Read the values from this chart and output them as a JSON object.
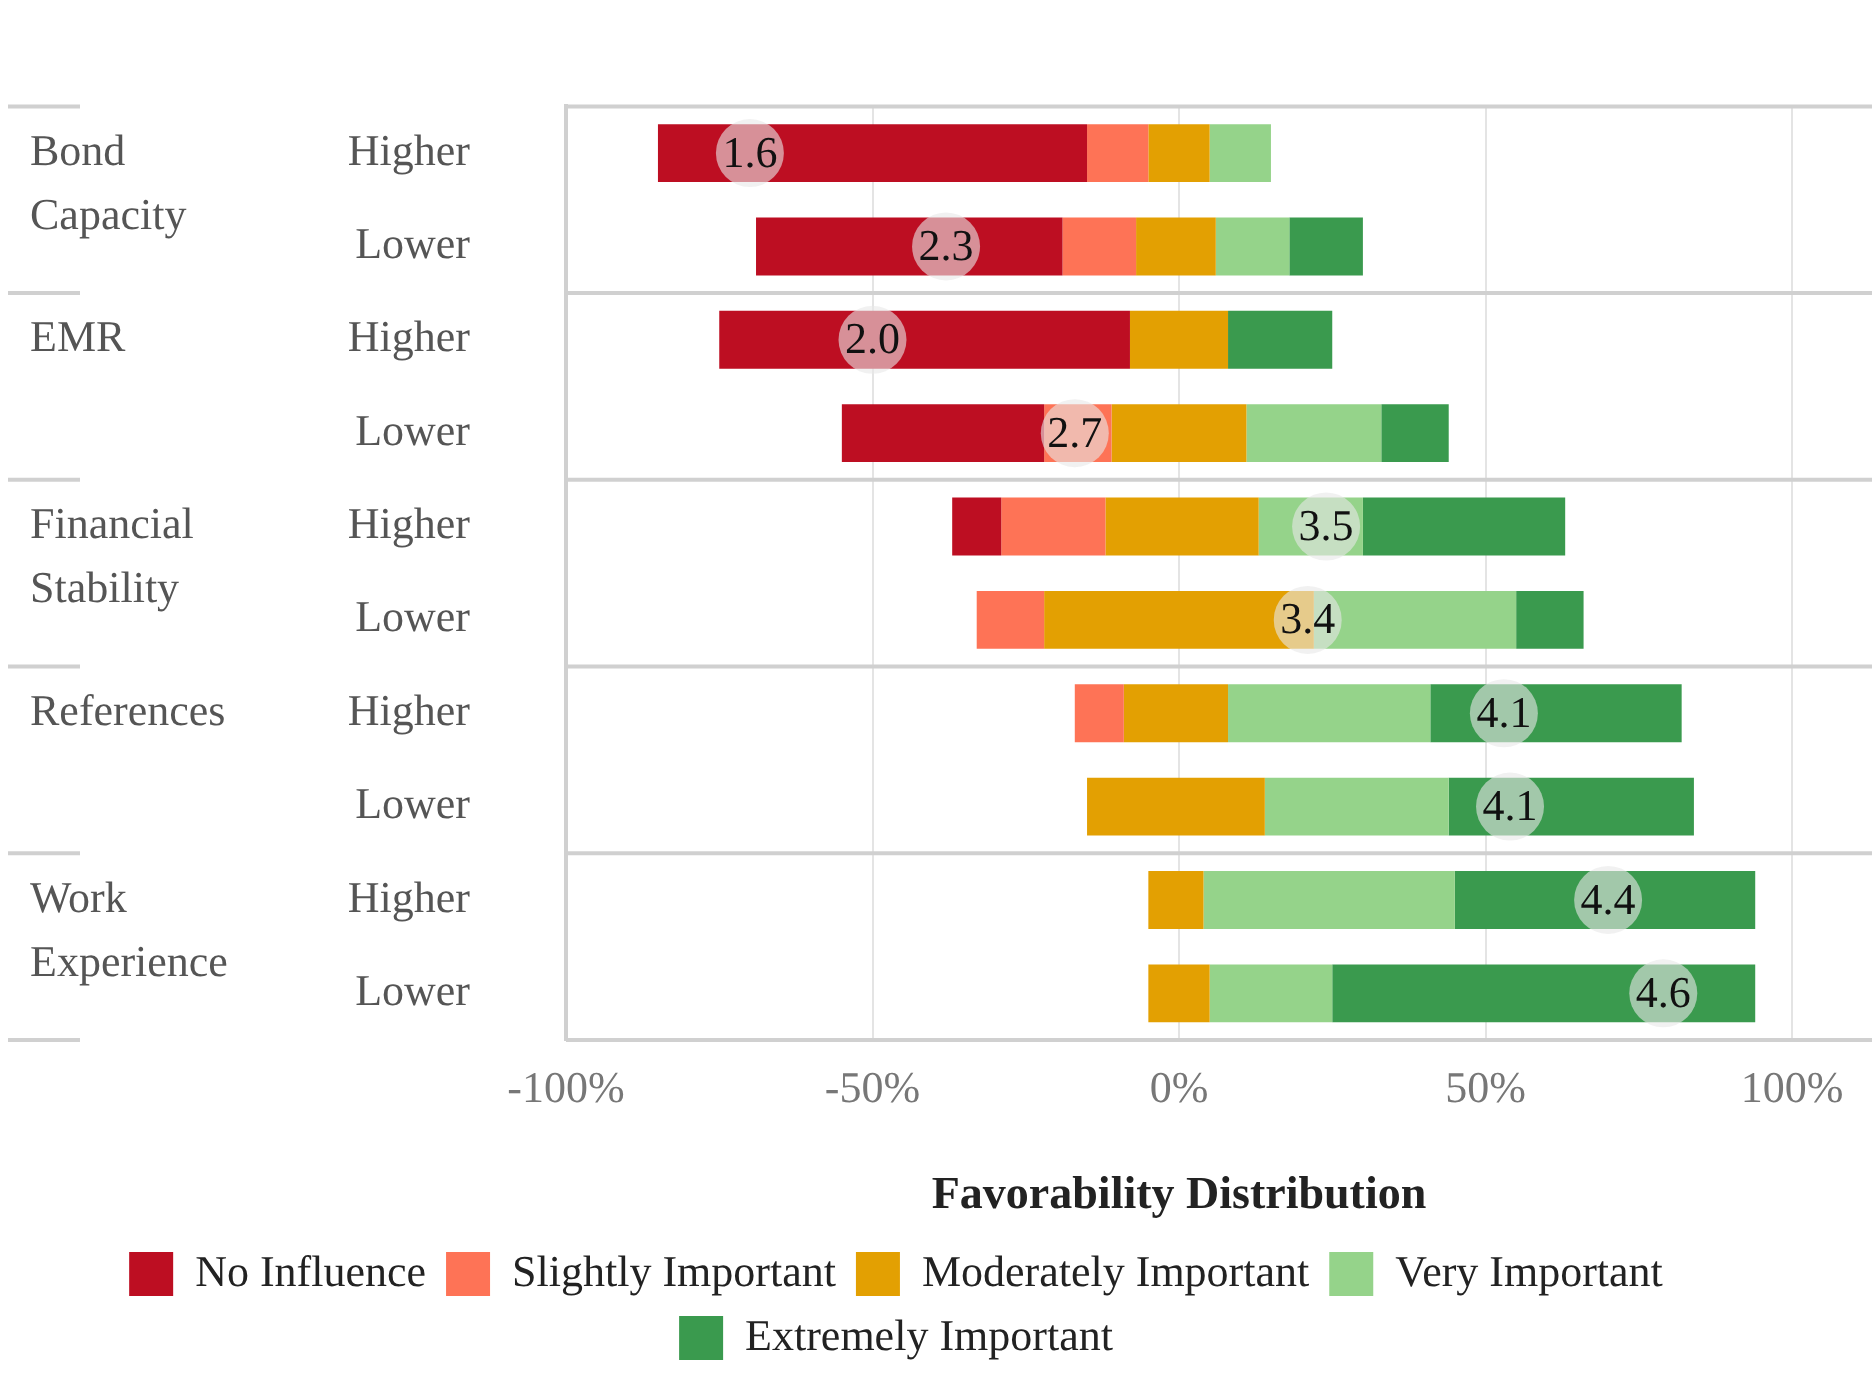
{
  "chart_data": {
    "type": "bar",
    "orientation": "horizontal",
    "xlabel": "Favorability Distribution",
    "categories": [
      "Higher",
      "Lower",
      "Higher",
      "Lower",
      "Higher",
      "Lower",
      "Higher",
      "Lower",
      "Higher",
      "Lower"
    ],
    "series": [
      {
        "name": "No Influence",
        "color": "#bd0e22",
        "base": [
          -85,
          -69,
          -75,
          -55,
          -37,
          null,
          null,
          null,
          null,
          null
        ],
        "values": [
          70,
          50,
          67,
          33,
          8,
          null,
          null,
          null,
          null,
          null
        ]
      },
      {
        "name": "Slightly Important",
        "color": "#fe7356",
        "base": [
          -15,
          -19,
          null,
          -22,
          -29,
          -33,
          -17,
          null,
          null,
          null
        ],
        "values": [
          10,
          12,
          null,
          11,
          17,
          11,
          8,
          null,
          null,
          null
        ]
      },
      {
        "name": "Moderately Important",
        "color": "#e3a002",
        "base": [
          -5,
          -7,
          -8,
          -11,
          -12,
          -22,
          -9,
          -15,
          -5,
          -5
        ],
        "values": [
          10,
          13,
          16,
          22,
          25,
          44,
          17,
          29,
          9,
          10
        ]
      },
      {
        "name": "Very Important",
        "color": "#95d38a",
        "base": [
          5,
          6,
          null,
          11,
          13,
          22,
          8,
          14,
          4,
          5
        ],
        "values": [
          10,
          12,
          null,
          22,
          17,
          33,
          33,
          30,
          41,
          20
        ]
      },
      {
        "name": "Extremely Important",
        "color": "#3a9a4e",
        "base": [
          null,
          18,
          8,
          33,
          30,
          55,
          41,
          44,
          45,
          25
        ],
        "values": [
          null,
          12,
          17,
          11,
          33,
          11,
          41,
          40,
          49,
          69
        ]
      }
    ],
    "xlim": [
      -100,
      100
    ],
    "xticks": [
      {
        "value": -100,
        "label": "-100%"
      },
      {
        "value": -50,
        "label": "-50%"
      },
      {
        "value": 0,
        "label": "0%"
      },
      {
        "value": 50,
        "label": "50%"
      },
      {
        "value": 100,
        "label": "100%"
      }
    ],
    "grid": "x",
    "legend": "bottom",
    "annotations": [
      "Bond Capacity",
      "EMR",
      "Financial Stability",
      "References",
      "Work Experience",
      {
        "text": "1.6",
        "x": -70
      },
      {
        "text": "2.3",
        "x": -38
      },
      {
        "text": "2.0",
        "x": -50
      },
      {
        "text": "2.7",
        "x": -17
      },
      {
        "text": "3.5",
        "x": 24
      },
      {
        "text": "3.4",
        "x": 21
      },
      {
        "text": "4.1",
        "x": 53
      },
      {
        "text": "4.1",
        "x": 54
      },
      {
        "text": "4.4",
        "x": 70
      },
      {
        "text": "4.6",
        "x": 79
      }
    ]
  }
}
